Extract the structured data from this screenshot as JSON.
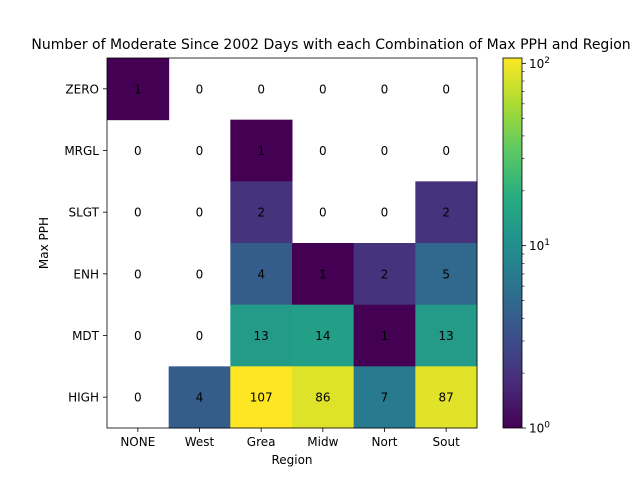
{
  "chart_data": {
    "type": "heatmap",
    "title": "Number of Moderate Since 2002 Days with each Combination of Max PPH and Region",
    "xlabel": "Region",
    "ylabel": "Max PPH",
    "x_categories": [
      "NONE",
      "West",
      "Grea",
      "Midw",
      "Nort",
      "Sout"
    ],
    "y_categories": [
      "ZERO",
      "MRGL",
      "SLGT",
      "ENH",
      "MDT",
      "HIGH"
    ],
    "values": [
      [
        1,
        0,
        0,
        0,
        0,
        0
      ],
      [
        0,
        0,
        1,
        0,
        0,
        0
      ],
      [
        0,
        0,
        2,
        0,
        0,
        2
      ],
      [
        0,
        0,
        4,
        1,
        2,
        5
      ],
      [
        0,
        0,
        13,
        14,
        1,
        13
      ],
      [
        0,
        4,
        107,
        86,
        7,
        87
      ]
    ],
    "colorscale": "viridis",
    "color_scale_type": "log",
    "color_range": [
      1,
      107
    ],
    "zero_cells_blank": true,
    "colorbar_ticks": [
      {
        "value": 1,
        "base": "10",
        "exp": "0"
      },
      {
        "value": 10,
        "base": "10",
        "exp": "1"
      },
      {
        "value": 100,
        "base": "10",
        "exp": "2"
      }
    ]
  }
}
